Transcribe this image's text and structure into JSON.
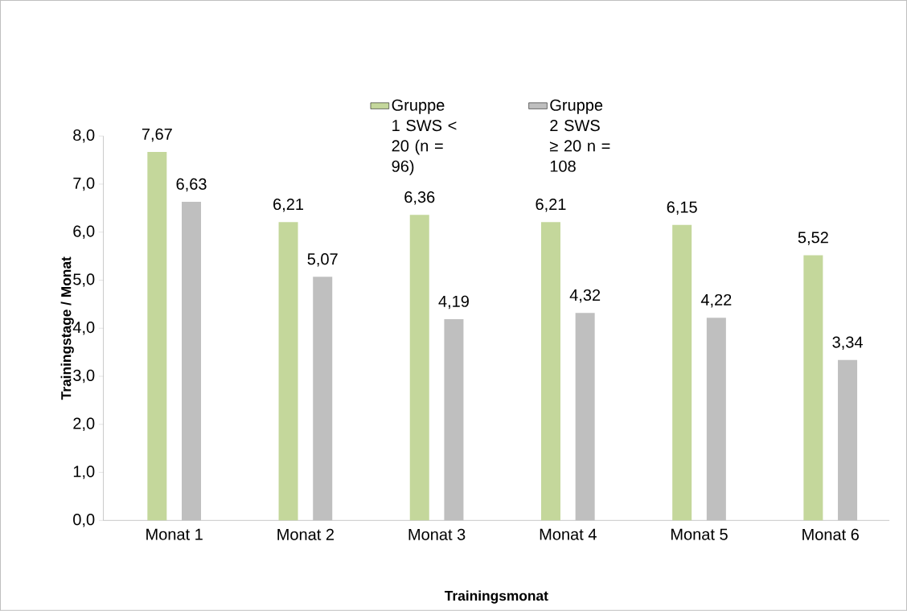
{
  "chart_data": {
    "type": "bar",
    "xlabel": "Trainingsmonat",
    "ylabel": "Trainingstage / Monat",
    "categories": [
      "Monat 1",
      "Monat 2",
      "Monat 3",
      "Monat 4",
      "Monat 5",
      "Monat 6"
    ],
    "series": [
      {
        "name": "Gruppe 1 SWS < 20 (n = 96)",
        "color": "#c4d79b",
        "values": [
          7.67,
          6.21,
          6.36,
          6.21,
          6.15,
          5.52
        ],
        "value_labels": [
          "7,67",
          "6,21",
          "6,36",
          "6,21",
          "6,15",
          "5,52"
        ]
      },
      {
        "name": "Gruppe 2 SWS ≥ 20 n = 108",
        "color": "#bfbfbf",
        "values": [
          6.63,
          5.07,
          4.19,
          4.32,
          4.22,
          3.34
        ],
        "value_labels": [
          "6,63",
          "5,07",
          "4,19",
          "4,32",
          "4,22",
          "3,34"
        ]
      }
    ],
    "ylim": [
      0,
      8
    ],
    "yticks": [
      {
        "value": 0,
        "label": "0,0"
      },
      {
        "value": 1,
        "label": "1,0"
      },
      {
        "value": 2,
        "label": "2,0"
      },
      {
        "value": 3,
        "label": "3,0"
      },
      {
        "value": 4,
        "label": "4,0"
      },
      {
        "value": 5,
        "label": "5,0"
      },
      {
        "value": 6,
        "label": "6,0"
      },
      {
        "value": 7,
        "label": "7,0"
      },
      {
        "value": 8,
        "label": "8,0"
      }
    ],
    "grid": false,
    "legend": "top"
  }
}
